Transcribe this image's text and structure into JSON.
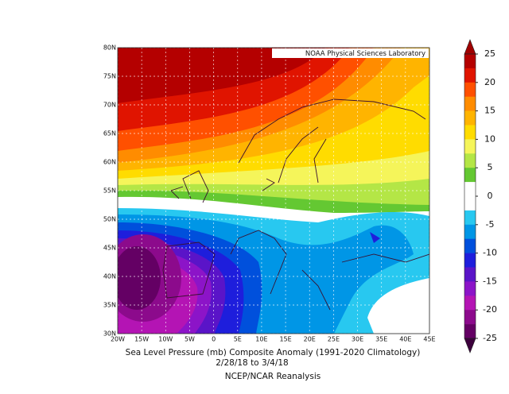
{
  "map": {
    "xlim": [
      -20,
      45
    ],
    "ylim": [
      30,
      80
    ],
    "xticks": [
      {
        "value": -20,
        "label": "20W"
      },
      {
        "value": -15,
        "label": "15W"
      },
      {
        "value": -10,
        "label": "10W"
      },
      {
        "value": -5,
        "label": "5W"
      },
      0,
      {
        "value": 5,
        "label": "5E"
      },
      {
        "value": 10,
        "label": "10E"
      },
      {
        "value": 15,
        "label": "15E"
      },
      {
        "value": 20,
        "label": "20E"
      },
      {
        "value": 25,
        "label": "25E"
      },
      {
        "value": 30,
        "label": "30E"
      },
      {
        "value": 35,
        "label": "35E"
      },
      {
        "value": 40,
        "label": "40E"
      },
      {
        "value": 45,
        "label": "45E"
      }
    ],
    "yticks": [
      {
        "value": 30,
        "label": "30N"
      },
      {
        "value": 35,
        "label": "35N"
      },
      {
        "value": 40,
        "label": "40N"
      },
      {
        "value": 45,
        "label": "45N"
      },
      {
        "value": 50,
        "label": "50N"
      },
      {
        "value": 55,
        "label": "55N"
      },
      {
        "value": 60,
        "label": "60N"
      },
      {
        "value": 65,
        "label": "65N"
      },
      {
        "value": 70,
        "label": "70N"
      },
      {
        "value": 75,
        "label": "75N"
      },
      {
        "value": 80,
        "label": "80N"
      }
    ],
    "credit": "NOAA Physical Sciences Laboratory"
  },
  "colorbar": {
    "lim": [
      -25,
      25
    ],
    "ticks": [
      25,
      20,
      15,
      10,
      5,
      0,
      -5,
      -10,
      -15,
      -20,
      -25
    ],
    "colors": [
      "#b40000",
      "#e01400",
      "#ff5000",
      "#ff8c00",
      "#ffb400",
      "#ffdc00",
      "#f5f55a",
      "#b4e646",
      "#64c832",
      "#ffffff",
      "#ffffff",
      "#28c8f0",
      "#0096e6",
      "#0050dc",
      "#1e1edc",
      "#5a14c8",
      "#8c14c8",
      "#b414b4",
      "#8c0a8c",
      "#640064"
    ],
    "over_color": "#a00000",
    "under_color": "#3c003c"
  },
  "caption": [
    "Sea Level Pressure (mb) Composite Anomaly (1991-2020 Climatology)",
    "2/28/18   to 3/4/18",
    "NCEP/NCAR Reanalysis"
  ]
}
